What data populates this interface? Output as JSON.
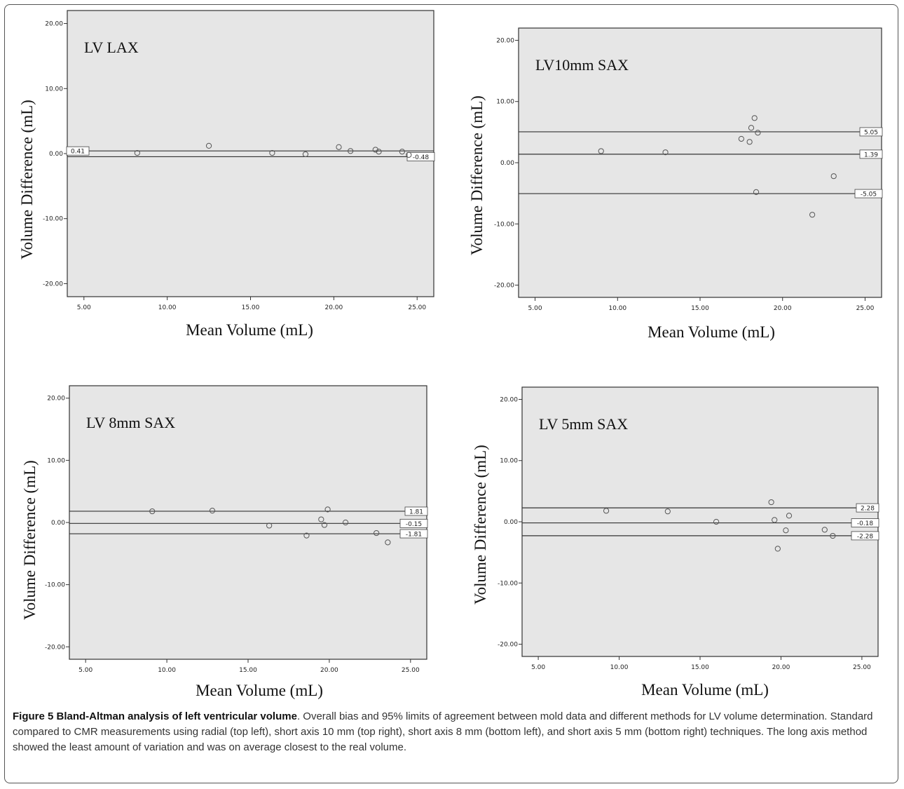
{
  "chart_data": [
    {
      "type": "scatter",
      "title": "LV LAX",
      "xlabel": "Mean Volume (mL)",
      "ylabel": "Volume Difference (mL)",
      "xlim": [
        4,
        26
      ],
      "ylim": [
        -22,
        22
      ],
      "x_ticks": [
        "5.00",
        "10.00",
        "15.00",
        "20.00",
        "25.00"
      ],
      "y_ticks": [
        "20.00",
        "10.00",
        "0.00",
        "-10.00",
        "-20.00"
      ],
      "points": [
        {
          "x": 8.2,
          "y": 0.1
        },
        {
          "x": 12.5,
          "y": 1.2
        },
        {
          "x": 16.3,
          "y": 0.1
        },
        {
          "x": 18.3,
          "y": -0.1
        },
        {
          "x": 20.3,
          "y": 1.0
        },
        {
          "x": 21.0,
          "y": 0.4
        },
        {
          "x": 22.5,
          "y": 0.6
        },
        {
          "x": 22.7,
          "y": 0.3
        },
        {
          "x": 24.1,
          "y": 0.3
        },
        {
          "x": 24.5,
          "y": -0.2
        }
      ],
      "lines": [
        {
          "y": 0.41,
          "label": "0.41",
          "side": "left"
        },
        {
          "y": -0.48,
          "label": "-0.48",
          "side": "right"
        }
      ],
      "grid": false
    },
    {
      "type": "scatter",
      "title": "LV10mm SAX",
      "xlabel": "Mean Volume (mL)",
      "ylabel": "Volume Difference (mL)",
      "xlim": [
        4,
        26
      ],
      "ylim": [
        -22,
        22
      ],
      "x_ticks": [
        "5.00",
        "10.00",
        "15.00",
        "20.00",
        "25.00"
      ],
      "y_ticks": [
        "20.00",
        "10.00",
        "0.00",
        "-10.00",
        "-20.00"
      ],
      "points": [
        {
          "x": 9.0,
          "y": 1.9
        },
        {
          "x": 12.9,
          "y": 1.7
        },
        {
          "x": 17.5,
          "y": 3.9
        },
        {
          "x": 18.0,
          "y": 3.4
        },
        {
          "x": 18.1,
          "y": 5.7
        },
        {
          "x": 18.3,
          "y": 7.3
        },
        {
          "x": 18.5,
          "y": 4.9
        },
        {
          "x": 18.4,
          "y": -4.8
        },
        {
          "x": 21.8,
          "y": -8.5
        },
        {
          "x": 23.1,
          "y": -2.2
        }
      ],
      "lines": [
        {
          "y": 5.05,
          "label": "5.05",
          "side": "right"
        },
        {
          "y": 1.39,
          "label": "1.39",
          "side": "right"
        },
        {
          "y": -5.05,
          "label": "-5.05",
          "side": "right"
        }
      ],
      "grid": false
    },
    {
      "type": "scatter",
      "title": "LV 8mm SAX",
      "xlabel": "Mean Volume (mL)",
      "ylabel": "Volume Difference (mL)",
      "xlim": [
        4,
        26
      ],
      "ylim": [
        -22,
        22
      ],
      "x_ticks": [
        "5.00",
        "10.00",
        "15.00",
        "20.00",
        "25.00"
      ],
      "y_ticks": [
        "20.00",
        "10.00",
        "0.00",
        "-10.00",
        "-20.00"
      ],
      "points": [
        {
          "x": 9.1,
          "y": 1.8
        },
        {
          "x": 12.8,
          "y": 1.9
        },
        {
          "x": 16.3,
          "y": -0.5
        },
        {
          "x": 18.6,
          "y": -2.1
        },
        {
          "x": 19.5,
          "y": 0.5
        },
        {
          "x": 19.7,
          "y": -0.4
        },
        {
          "x": 19.9,
          "y": 2.1
        },
        {
          "x": 21.0,
          "y": 0.0
        },
        {
          "x": 22.9,
          "y": -1.7
        },
        {
          "x": 23.6,
          "y": -3.2
        }
      ],
      "lines": [
        {
          "y": 1.81,
          "label": "1.81",
          "side": "right"
        },
        {
          "y": -0.15,
          "label": "-0.15",
          "side": "right"
        },
        {
          "y": -1.81,
          "label": "-1.81",
          "side": "right"
        }
      ],
      "grid": false
    },
    {
      "type": "scatter",
      "title": "LV 5mm SAX",
      "xlabel": "Mean Volume (mL)",
      "ylabel": "Volume Difference (mL)",
      "xlim": [
        4,
        26
      ],
      "ylim": [
        -22,
        22
      ],
      "x_ticks": [
        "5.00",
        "10.00",
        "15.00",
        "20.00",
        "25.00"
      ],
      "y_ticks": [
        "20.00",
        "10.00",
        "0.00",
        "-10.00",
        "-20.00"
      ],
      "points": [
        {
          "x": 9.2,
          "y": 1.8
        },
        {
          "x": 13.0,
          "y": 1.7
        },
        {
          "x": 16.0,
          "y": 0.0
        },
        {
          "x": 19.4,
          "y": 3.2
        },
        {
          "x": 19.6,
          "y": 0.3
        },
        {
          "x": 19.8,
          "y": -4.4
        },
        {
          "x": 20.3,
          "y": -1.4
        },
        {
          "x": 20.5,
          "y": 1.0
        },
        {
          "x": 22.7,
          "y": -1.3
        },
        {
          "x": 23.2,
          "y": -2.3
        }
      ],
      "lines": [
        {
          "y": 2.28,
          "label": "2.28",
          "side": "right"
        },
        {
          "y": -0.18,
          "label": "-0.18",
          "side": "right"
        },
        {
          "y": -2.28,
          "label": "-2.28",
          "side": "right"
        }
      ],
      "grid": false
    }
  ],
  "caption": {
    "heading": "Figure 5 Bland-Altman analysis of left ventricular volume",
    "body": ". Overall bias and 95% limits of agreement between mold data and different methods for LV volume determination. Standard compared to CMR measurements using radial (top left), short axis 10 mm (top right), short axis 8 mm (bottom left), and short axis 5 mm (bottom right) techniques. The long axis method showed the least amount of variation and was on average closest to the real volume."
  },
  "colors": {
    "plot_bg": "#e6e6e6",
    "axis": "#333333",
    "marker": "#555555",
    "line": "#333333"
  }
}
